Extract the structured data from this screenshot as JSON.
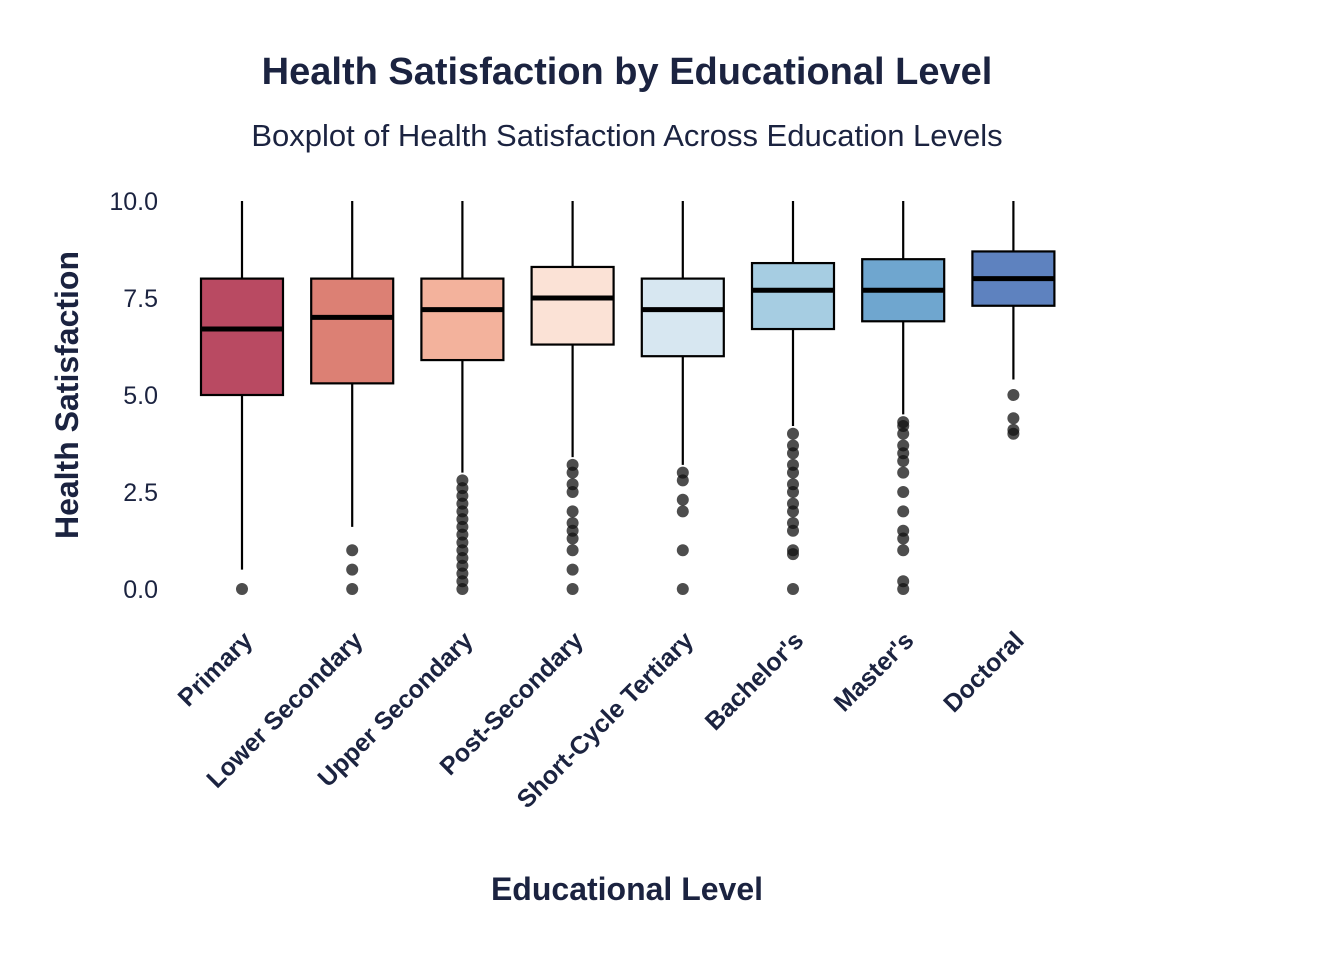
{
  "chart_data": {
    "type": "box",
    "title": "Health Satisfaction by Educational Level",
    "subtitle": "Boxplot of Health Satisfaction Across Education Levels",
    "xlabel": "Educational Level",
    "ylabel": "Health Satisfaction",
    "ylim": [
      -0.6,
      10.2
    ],
    "yticks": [
      0.0,
      2.5,
      5.0,
      7.5,
      10.0
    ],
    "ytick_labels": [
      "0.0",
      "2.5",
      "5.0",
      "7.5",
      "10.0"
    ],
    "grid": false,
    "legend": "none",
    "categories": [
      "Primary",
      "Lower Secondary",
      "Upper Secondary",
      "Post-Secondary",
      "Short-Cycle Tertiary",
      "Bachelor's",
      "Master's",
      "Doctoral"
    ],
    "boxes": [
      {
        "category": "Primary",
        "whisker_low": 0.5,
        "q1": 5.0,
        "median": 6.7,
        "q3": 8.0,
        "whisker_high": 10.0,
        "color": "#b94a62",
        "outliers": [
          0.0
        ]
      },
      {
        "category": "Lower Secondary",
        "whisker_low": 1.6,
        "q1": 5.3,
        "median": 7.0,
        "q3": 8.0,
        "whisker_high": 10.0,
        "color": "#dc8074",
        "outliers": [
          0.0,
          0.5,
          1.0
        ]
      },
      {
        "category": "Upper Secondary",
        "whisker_low": 3.0,
        "q1": 5.9,
        "median": 7.2,
        "q3": 8.0,
        "whisker_high": 10.0,
        "color": "#f3b29c",
        "outliers": [
          0.0,
          0.2,
          0.4,
          0.6,
          0.8,
          1.0,
          1.2,
          1.4,
          1.6,
          1.8,
          2.0,
          2.2,
          2.4,
          2.6,
          2.8
        ]
      },
      {
        "category": "Post-Secondary",
        "whisker_low": 3.4,
        "q1": 6.3,
        "median": 7.5,
        "q3": 8.3,
        "whisker_high": 10.0,
        "color": "#fbe2d6",
        "outliers": [
          0.0,
          0.5,
          1.0,
          1.3,
          1.5,
          1.7,
          2.0,
          2.5,
          2.7,
          3.0,
          3.2
        ]
      },
      {
        "category": "Short-Cycle Tertiary",
        "whisker_low": 3.2,
        "q1": 6.0,
        "median": 7.2,
        "q3": 8.0,
        "whisker_high": 10.0,
        "color": "#d7e7f1",
        "outliers": [
          0.0,
          1.0,
          2.0,
          2.3,
          2.8,
          3.0
        ]
      },
      {
        "category": "Bachelor's",
        "whisker_low": 4.2,
        "q1": 6.7,
        "median": 7.7,
        "q3": 8.4,
        "whisker_high": 10.0,
        "color": "#a6cde2",
        "outliers": [
          0.0,
          0.9,
          1.0,
          1.5,
          1.7,
          2.0,
          2.2,
          2.5,
          2.7,
          3.0,
          3.2,
          3.5,
          3.7,
          4.0
        ]
      },
      {
        "category": "Master's",
        "whisker_low": 4.5,
        "q1": 6.9,
        "median": 7.7,
        "q3": 8.5,
        "whisker_high": 10.0,
        "color": "#6fa6cf",
        "outliers": [
          0.0,
          0.2,
          1.0,
          1.3,
          1.5,
          2.0,
          2.5,
          3.0,
          3.3,
          3.5,
          3.7,
          4.0,
          4.2,
          4.3
        ]
      },
      {
        "category": "Doctoral",
        "whisker_low": 5.4,
        "q1": 7.3,
        "median": 8.0,
        "q3": 8.7,
        "whisker_high": 10.0,
        "color": "#5e82bf",
        "outliers": [
          4.0,
          4.1,
          4.4,
          5.0
        ]
      }
    ]
  }
}
